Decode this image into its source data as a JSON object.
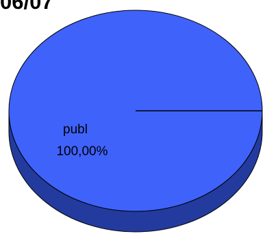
{
  "chart_data": {
    "type": "pie",
    "title": "06/07",
    "style": "3d",
    "slices": [
      {
        "label": "publ",
        "value": 100,
        "percent_label": "100,00%",
        "color": "#3f62fb"
      }
    ],
    "colors": {
      "top": "#3f62fb",
      "side": "#233b9e",
      "outline": "#000000"
    }
  }
}
